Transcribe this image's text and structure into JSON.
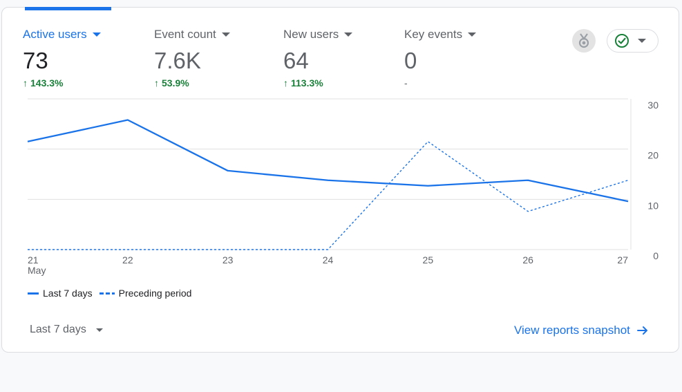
{
  "metrics": [
    {
      "label": "Active users",
      "value": "73",
      "change": "143.3%",
      "direction": "up",
      "active": true
    },
    {
      "label": "Event count",
      "value": "7.6K",
      "change": "53.9%",
      "direction": "up",
      "active": false
    },
    {
      "label": "New users",
      "value": "64",
      "change": "113.3%",
      "direction": "up",
      "active": false
    },
    {
      "label": "Key events",
      "value": "0",
      "change": "-",
      "direction": "none",
      "active": false
    }
  ],
  "header_icons": {
    "medal": "medal-icon",
    "status": "check-circle-icon",
    "dropdown": "chevron-down-icon"
  },
  "chart_data": {
    "type": "line",
    "categories": [
      "21",
      "22",
      "23",
      "24",
      "25",
      "26",
      "27"
    ],
    "x_sublabel": "May",
    "ylim": [
      0,
      30
    ],
    "yticks": [
      "0",
      "10",
      "20",
      "30"
    ],
    "grid": true,
    "series": [
      {
        "name": "Last 7 days",
        "style": "solid",
        "values": [
          21.5,
          25.8,
          15.7,
          13.8,
          12.7,
          13.8,
          9.6
        ]
      },
      {
        "name": "Preceding period",
        "style": "dashed",
        "values": [
          0,
          0,
          0,
          0,
          21.5,
          7.6,
          13.8
        ]
      }
    ]
  },
  "footer": {
    "date_range": "Last 7 days",
    "snapshot_link": "View reports snapshot"
  },
  "colors": {
    "accent": "#1a73e8",
    "positive": "#188038",
    "text": "#202124",
    "muted": "#5f6368"
  }
}
